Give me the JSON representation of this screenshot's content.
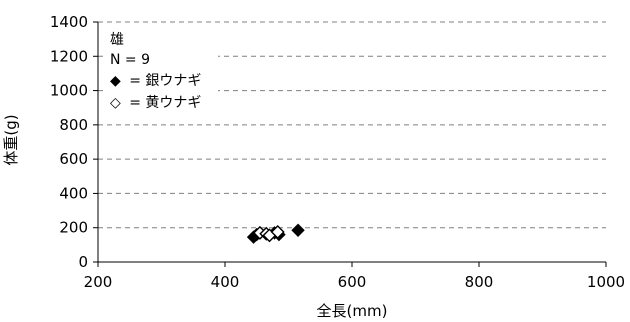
{
  "chart_data": {
    "type": "scatter",
    "title": "",
    "xlabel": "全長(mm)",
    "ylabel": "体重(g)",
    "xlim": [
      200,
      1000
    ],
    "ylim": [
      0,
      1400
    ],
    "x_ticks": [
      "200",
      "400",
      "600",
      "800",
      "1000"
    ],
    "y_ticks": [
      "0",
      "200",
      "400",
      "600",
      "800",
      "1000",
      "1200",
      "1400"
    ],
    "grid": "horizontal dashed",
    "legend": {
      "header": "雄",
      "count": "N = 9",
      "entries": [
        {
          "symbol": "◆",
          "label": "= 銀ウナギ"
        },
        {
          "symbol": "◇",
          "label": "= 黄ウナギ"
        }
      ]
    },
    "series": [
      {
        "name": "銀ウナギ",
        "marker": "filled-diamond",
        "points": [
          {
            "x": 445,
            "y": 145
          },
          {
            "x": 450,
            "y": 160
          },
          {
            "x": 478,
            "y": 170
          },
          {
            "x": 485,
            "y": 160
          },
          {
            "x": 515,
            "y": 185
          }
        ]
      },
      {
        "name": "黄ウナギ",
        "marker": "open-diamond",
        "points": [
          {
            "x": 455,
            "y": 170
          },
          {
            "x": 465,
            "y": 165
          },
          {
            "x": 470,
            "y": 155
          },
          {
            "x": 483,
            "y": 175
          }
        ]
      }
    ]
  }
}
